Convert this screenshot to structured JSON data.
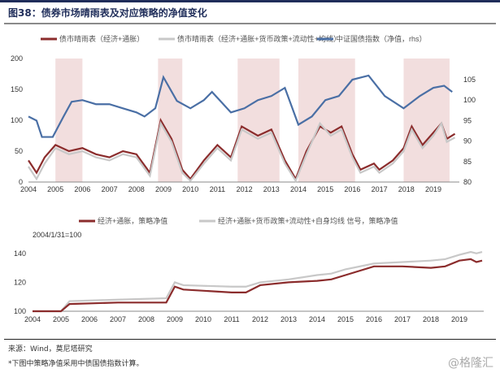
{
  "title": "图38：债券市场晴雨表及对应策略的净值变化",
  "source": "来源：Wind，莫尼塔研究",
  "note": "*下图中策略净值采用中债国债指数计算。",
  "watermark": "@格隆汇",
  "chart_data": [
    {
      "type": "line",
      "title": "",
      "legend_placement": "top",
      "ylim_left": [
        0,
        200
      ],
      "yticks_left": [
        "0",
        "50",
        "100",
        "150",
        "200"
      ],
      "ylim_right": [
        80,
        110
      ],
      "yticks_right": [
        "80",
        "85",
        "90",
        "95",
        "100",
        "105"
      ],
      "xticks": [
        "2004",
        "2005",
        "2006",
        "2007",
        "2008",
        "2009",
        "2010",
        "2011",
        "2012",
        "2013",
        "2014",
        "2015",
        "2016",
        "2017",
        "2018",
        "2019"
      ],
      "shaded_periods": [
        [
          2005.0,
          2006.0
        ],
        [
          2008.8,
          2009.7
        ],
        [
          2011.75,
          2013.3
        ],
        [
          2014.0,
          2016.1
        ],
        [
          2017.9,
          2019.6
        ]
      ],
      "shade_color": "#f2dede",
      "series": [
        {
          "name": "债市晴雨表（经济+通胀）",
          "axis": "left",
          "color": "#8b2c2c",
          "x": [
            2004,
            2004.3,
            2004.6,
            2005,
            2005.5,
            2006,
            2006.5,
            2007,
            2007.5,
            2008,
            2008.5,
            2008.9,
            2009.3,
            2009.7,
            2010,
            2010.5,
            2011,
            2011.5,
            2011.9,
            2012.5,
            2013,
            2013.5,
            2013.9,
            2014.3,
            2014.8,
            2015.2,
            2015.6,
            2016,
            2016.3,
            2016.8,
            2017,
            2017.5,
            2017.9,
            2018.2,
            2018.6,
            2019,
            2019.3,
            2019.5,
            2019.8
          ],
          "y": [
            35,
            15,
            40,
            60,
            50,
            55,
            45,
            40,
            50,
            45,
            15,
            100,
            70,
            20,
            5,
            35,
            60,
            40,
            90,
            75,
            85,
            35,
            5,
            50,
            90,
            80,
            90,
            45,
            20,
            30,
            20,
            35,
            55,
            90,
            60,
            80,
            95,
            70,
            78
          ]
        },
        {
          "name": "债市晴雨表（经济+通胀+货币政策+流动性+均线）",
          "axis": "left",
          "color": "#c8c8c8",
          "x": [
            2004,
            2004.3,
            2004.6,
            2005,
            2005.5,
            2006,
            2006.5,
            2007,
            2007.5,
            2008,
            2008.5,
            2008.9,
            2009.3,
            2009.7,
            2010,
            2010.5,
            2011,
            2011.5,
            2011.9,
            2012.5,
            2013,
            2013.5,
            2013.9,
            2014.3,
            2014.8,
            2015.2,
            2015.6,
            2016,
            2016.3,
            2016.8,
            2017,
            2017.5,
            2017.9,
            2018.2,
            2018.6,
            2019,
            2019.3,
            2019.5,
            2019.8
          ],
          "y": [
            25,
            5,
            30,
            55,
            45,
            50,
            40,
            35,
            45,
            40,
            10,
            95,
            65,
            15,
            2,
            30,
            55,
            35,
            85,
            70,
            80,
            30,
            2,
            45,
            95,
            75,
            85,
            40,
            15,
            25,
            15,
            30,
            50,
            85,
            55,
            75,
            95,
            65,
            72
          ]
        },
        {
          "name": "中证国债指数（净值，rhs）",
          "axis": "right",
          "color": "#4a6fa5",
          "x": [
            2004,
            2004.3,
            2004.5,
            2004.9,
            2005.3,
            2005.6,
            2006,
            2006.5,
            2007,
            2007.5,
            2008,
            2008.3,
            2008.7,
            2009,
            2009.5,
            2010,
            2010.5,
            2010.8,
            2011.5,
            2012,
            2012.5,
            2013,
            2013.5,
            2014,
            2014.5,
            2015,
            2015.5,
            2016,
            2016.6,
            2017.2,
            2017.9,
            2018.5,
            2019,
            2019.4,
            2019.7
          ],
          "y": [
            96,
            95,
            91,
            91,
            96,
            99.6,
            100,
            99,
            99,
            98,
            97,
            96,
            98,
            105.6,
            99.8,
            98,
            100,
            102,
            97,
            98,
            100,
            101,
            103,
            94,
            96,
            100,
            101,
            105,
            106,
            101,
            98,
            101,
            103,
            103.5,
            102
          ]
        }
      ]
    },
    {
      "type": "line",
      "annotation": "2004/1/31=100",
      "legend_placement": "top",
      "ylim": [
        100,
        140
      ],
      "yticks": [
        "100",
        "120",
        "140"
      ],
      "xticks": [
        "2004",
        "2005",
        "2006",
        "2007",
        "2008",
        "2009",
        "2010",
        "2011",
        "2012",
        "2013",
        "2014",
        "2015",
        "2016",
        "2017",
        "2018",
        "2019"
      ],
      "series": [
        {
          "name": "经济+通胀，策略净值",
          "color": "#8b2c2c",
          "x": [
            2004,
            2005,
            2005.3,
            2007,
            2008.7,
            2009,
            2009.3,
            2011,
            2011.5,
            2012,
            2013,
            2014,
            2014.5,
            2015,
            2016,
            2017,
            2018,
            2018.5,
            2019,
            2019.4,
            2019.6,
            2019.8
          ],
          "y": [
            100,
            100,
            105,
            106,
            106,
            117,
            115,
            113,
            113,
            118,
            120,
            121,
            122,
            125,
            131,
            131,
            130,
            131,
            135,
            136,
            134,
            135
          ]
        },
        {
          "name": "经济+通胀+货币政策+流动性+自身均线 信号，策略净值",
          "color": "#c8c8c8",
          "x": [
            2004,
            2005,
            2005.3,
            2007,
            2008.7,
            2009,
            2009.3,
            2011,
            2011.5,
            2012,
            2013,
            2014,
            2014.5,
            2015,
            2016,
            2017,
            2018,
            2018.5,
            2019,
            2019.4,
            2019.6,
            2019.8
          ],
          "y": [
            100,
            100,
            107,
            108,
            109,
            120,
            118,
            117,
            117,
            120,
            122,
            125,
            126,
            129,
            133,
            134,
            135,
            136,
            139,
            141,
            140,
            141
          ]
        }
      ]
    }
  ]
}
